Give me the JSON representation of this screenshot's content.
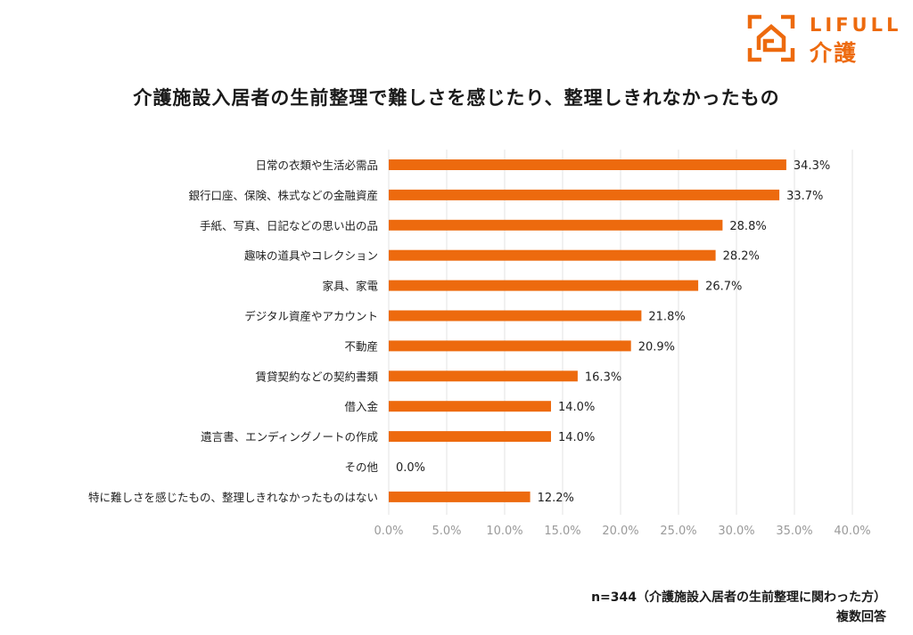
{
  "brand": {
    "name_en": "LIFULL",
    "name_jp": "介護",
    "color": "#ED6A0E"
  },
  "chart_data": {
    "type": "bar",
    "orientation": "horizontal",
    "title": "介護施設入居者の生前整理で難しさを感じたり、整理しきれなかったもの",
    "categories": [
      "日常の衣類や生活必需品",
      "銀行口座、保険、株式などの金融資産",
      "手紙、写真、日記などの思い出の品",
      "趣味の道具やコレクション",
      "家具、家電",
      "デジタル資産やアカウント",
      "不動産",
      "賃貸契約などの契約書類",
      "借入金",
      "遺言書、エンディングノートの作成",
      "その他",
      "特に難しさを感じたもの、整理しきれなかったものはない"
    ],
    "values": [
      34.3,
      33.7,
      28.8,
      28.2,
      26.7,
      21.8,
      20.9,
      16.3,
      14.0,
      14.0,
      0.0,
      12.2
    ],
    "value_labels": [
      "34.3%",
      "33.7%",
      "28.8%",
      "28.2%",
      "26.7%",
      "21.8%",
      "20.9%",
      "16.3%",
      "14.0%",
      "14.0%",
      "0.0%",
      "12.2%"
    ],
    "x_ticks": [
      "0.0%",
      "5.0%",
      "10.0%",
      "15.0%",
      "20.0%",
      "25.0%",
      "30.0%",
      "35.0%",
      "40.0%"
    ],
    "xlim": [
      0,
      40
    ],
    "grid": true,
    "bar_color": "#ED6A0E",
    "grid_color": "#e3e3e3",
    "tick_color": "#9a9a9a"
  },
  "footnote": {
    "sample": "n=344（介護施設入居者の生前整理に関わった方）",
    "note": "複数回答"
  }
}
